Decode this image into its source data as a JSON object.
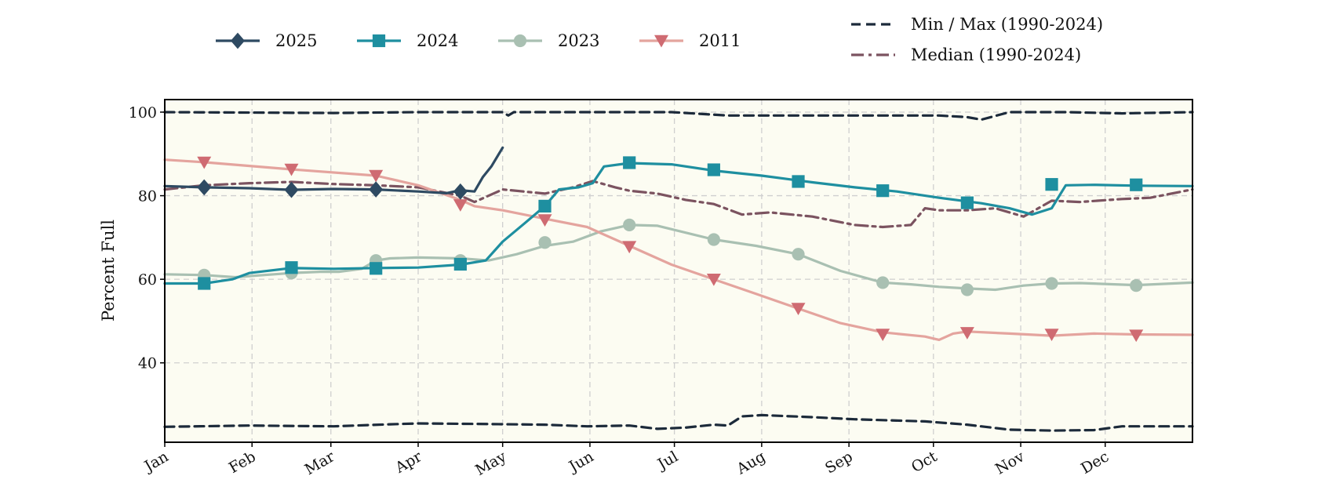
{
  "chart_data": {
    "type": "line",
    "ylabel": "Percent Full",
    "xlabel": "",
    "ylim": [
      21,
      103
    ],
    "xlim": [
      0,
      365
    ],
    "grid": true,
    "yticks": [
      40,
      60,
      80,
      100
    ],
    "ytick_labels": [
      "40",
      "60",
      "80",
      "100"
    ],
    "month_ticks": [
      0,
      31,
      59,
      90,
      120,
      151,
      181,
      212,
      243,
      273,
      304,
      334
    ],
    "month_labels": [
      "Jan",
      "Feb",
      "Mar",
      "Apr",
      "May",
      "Jun",
      "Jul",
      "Aug",
      "Sep",
      "Oct",
      "Nov",
      "Dec"
    ],
    "background_color": "#fcfcf2",
    "series": [
      {
        "name": "2025",
        "color": "#2e4a62",
        "marker": "diamond",
        "style": "solid",
        "x": [
          0,
          14,
          30,
          45,
          60,
          75,
          90,
          100,
          105,
          110,
          113,
          116,
          120
        ],
        "values": [
          82.3,
          82.0,
          81.8,
          81.4,
          81.6,
          81.5,
          81.0,
          80.6,
          81.3,
          81.0,
          84.5,
          87.0,
          91.5
        ],
        "marker_x": [
          14,
          45,
          75,
          105
        ],
        "marker_values": [
          82.0,
          81.4,
          81.5,
          81.0
        ]
      },
      {
        "name": "2024",
        "color": "#1e8fa0",
        "marker": "square",
        "style": "solid",
        "x": [
          0,
          14,
          24,
          30,
          45,
          60,
          75,
          90,
          105,
          114,
          120,
          128,
          135,
          140,
          147,
          152,
          156,
          165,
          180,
          195,
          212,
          230,
          245,
          260,
          275,
          290,
          300,
          308,
          315,
          320,
          330,
          345,
          365
        ],
        "values": [
          59.0,
          59.0,
          60.0,
          61.5,
          62.7,
          62.5,
          62.7,
          62.8,
          63.5,
          64.5,
          69.0,
          73.5,
          77.5,
          81.5,
          82.0,
          83.0,
          87.0,
          87.8,
          87.5,
          86.0,
          84.8,
          83.2,
          82.0,
          81.0,
          79.5,
          78.2,
          77.0,
          75.5,
          77.0,
          82.5,
          82.6,
          82.4,
          82.3
        ],
        "marker_x": [
          14,
          45,
          75,
          105,
          135,
          165,
          195,
          225,
          255,
          285,
          315,
          345
        ],
        "marker_values": [
          59.0,
          62.8,
          62.6,
          63.6,
          77.5,
          87.9,
          86.2,
          83.4,
          81.2,
          78.3,
          82.7,
          82.6
        ]
      },
      {
        "name": "2023",
        "color": "#a9c0b2",
        "marker": "circle",
        "style": "solid",
        "x": [
          0,
          14,
          25,
          35,
          45,
          55,
          62,
          70,
          75,
          80,
          90,
          105,
          115,
          125,
          135,
          145,
          155,
          165,
          175,
          195,
          210,
          225,
          240,
          255,
          265,
          275,
          285,
          295,
          305,
          315,
          325,
          345,
          365
        ],
        "values": [
          61.2,
          61.0,
          60.5,
          61.0,
          61.5,
          61.8,
          61.8,
          62.5,
          64.5,
          65.0,
          65.2,
          65.0,
          64.5,
          66.0,
          68.0,
          69.0,
          71.5,
          73.0,
          72.8,
          69.5,
          68.0,
          66.0,
          62.0,
          59.2,
          58.8,
          58.2,
          57.8,
          57.5,
          58.5,
          59.0,
          59.1,
          58.6,
          59.2
        ],
        "marker_x": [
          14,
          45,
          75,
          105,
          135,
          165,
          195,
          225,
          255,
          285,
          315,
          345
        ],
        "marker_values": [
          61.0,
          61.5,
          64.5,
          64.5,
          68.8,
          73.0,
          69.5,
          66.0,
          59.2,
          57.5,
          59.0,
          58.5
        ]
      },
      {
        "name": "2011",
        "color": "#cf6b72",
        "line_color": "#e4a49e",
        "marker": "triangle-down",
        "style": "solid",
        "x": [
          0,
          14,
          45,
          75,
          90,
          105,
          110,
          120,
          135,
          150,
          165,
          180,
          195,
          210,
          225,
          240,
          255,
          270,
          275,
          280,
          285,
          300,
          315,
          330,
          345,
          365
        ],
        "values": [
          88.6,
          88.0,
          86.3,
          84.8,
          82.5,
          79.0,
          77.5,
          76.5,
          74.5,
          72.5,
          68.0,
          63.5,
          60.0,
          56.5,
          53.0,
          49.5,
          47.3,
          46.3,
          45.5,
          47.0,
          47.5,
          47.0,
          46.5,
          47.0,
          46.8,
          46.7
        ],
        "marker_x": [
          14,
          45,
          75,
          105,
          135,
          165,
          195,
          225,
          255,
          285,
          315,
          345
        ],
        "marker_values": [
          88.0,
          86.3,
          84.8,
          77.8,
          74.2,
          67.8,
          60.0,
          53.0,
          46.8,
          47.2,
          46.8,
          46.6
        ]
      },
      {
        "name": "Min / Max (1990-2024)",
        "color": "#1c2a3a",
        "marker": "none",
        "style": "dashed",
        "x": [
          0,
          60,
          90,
          120,
          122,
          124,
          180,
          200,
          230,
          260,
          275,
          285,
          290,
          300,
          310,
          320,
          340,
          365
        ],
        "values": [
          100.0,
          99.8,
          100.0,
          100.0,
          99.2,
          100.0,
          100.0,
          99.2,
          99.2,
          99.2,
          99.2,
          98.8,
          98.2,
          100.0,
          100.0,
          100.0,
          99.7,
          100.0
        ],
        "lower_x": [
          0,
          30,
          60,
          80,
          90,
          110,
          135,
          150,
          165,
          175,
          185,
          195,
          200,
          205,
          212,
          230,
          245,
          270,
          285,
          300,
          315,
          330,
          340,
          365
        ],
        "lower_values": [
          24.7,
          25.0,
          24.8,
          25.3,
          25.5,
          25.4,
          25.2,
          24.8,
          25.0,
          24.2,
          24.5,
          25.2,
          25.0,
          27.2,
          27.5,
          27.0,
          26.5,
          26.0,
          25.2,
          24.0,
          23.8,
          23.9,
          24.8,
          24.8
        ]
      },
      {
        "name": "Median (1990-2024)",
        "color": "#7b5360",
        "marker": "none",
        "style": "dashdot",
        "x": [
          0,
          14,
          30,
          45,
          60,
          75,
          90,
          105,
          110,
          120,
          135,
          145,
          152,
          160,
          165,
          175,
          185,
          195,
          205,
          215,
          230,
          245,
          255,
          265,
          270,
          275,
          285,
          295,
          305,
          315,
          325,
          340,
          350,
          365
        ],
        "values": [
          81.5,
          82.5,
          83.0,
          83.3,
          82.8,
          82.5,
          82.0,
          80.0,
          78.5,
          81.5,
          80.5,
          82.0,
          83.5,
          82.0,
          81.2,
          80.5,
          79.0,
          78.0,
          75.5,
          76.0,
          75.0,
          73.0,
          72.5,
          73.0,
          77.0,
          76.5,
          76.5,
          77.0,
          75.0,
          78.8,
          78.5,
          79.2,
          79.5,
          81.5
        ]
      }
    ]
  }
}
